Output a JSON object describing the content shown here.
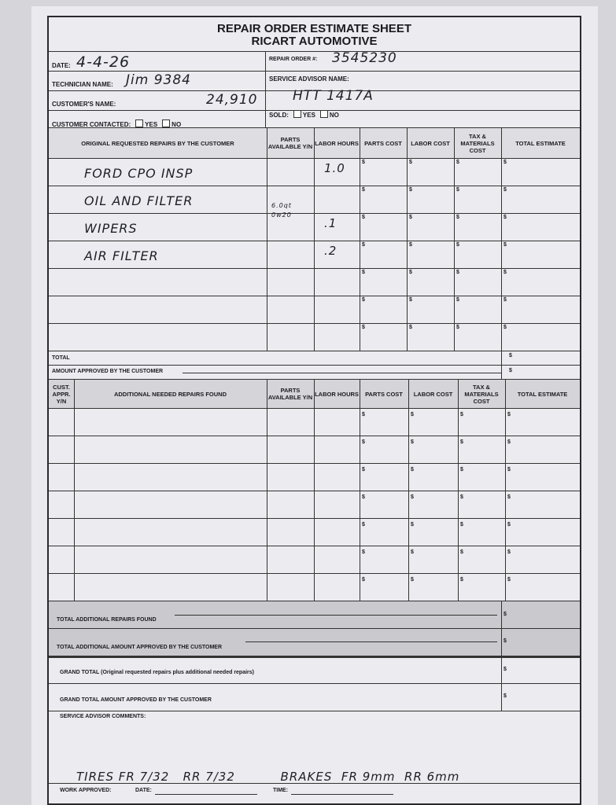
{
  "header": {
    "title": "REPAIR ORDER ESTIMATE SHEET",
    "company": "RICART AUTOMOTIVE"
  },
  "info": {
    "date_label": "DATE:",
    "date_value": "4-4-26",
    "ro_label": "REPAIR ORDER #:",
    "ro_value": "3545230",
    "tech_label": "TECHNICIAN NAME:",
    "tech_value": "Jim 9384",
    "advisor_label": "SERVICE ADVISOR NAME:",
    "advisor_value": "HTT 1417A",
    "customer_label": "CUSTOMER'S NAME:",
    "customer_value": "24,910",
    "contacted_label": "CUSTOMER CONTACTED:",
    "sold_label": "SOLD:",
    "yes": "YES",
    "no": "NO"
  },
  "original": {
    "headers": [
      "ORIGINAL REQUESTED REPAIRS BY THE CUSTOMER",
      "PARTS AVAILABLE Y/N",
      "LABOR HOURS",
      "PARTS COST",
      "LABOR COST",
      "TAX & MATERIALS COST",
      "TOTAL ESTIMATE"
    ],
    "rows": [
      {
        "desc": "FORD CPO INSP",
        "parts": "",
        "hours": "1.0"
      },
      {
        "desc": "OIL AND FILTER",
        "parts": "6.0qt 0w20",
        "hours": ""
      },
      {
        "desc": "WIPERS",
        "parts": "",
        "hours": ".1"
      },
      {
        "desc": "AIR FILTER",
        "parts": "",
        "hours": ".2"
      },
      {
        "desc": "",
        "parts": "",
        "hours": ""
      },
      {
        "desc": "",
        "parts": "",
        "hours": ""
      },
      {
        "desc": "",
        "parts": "",
        "hours": ""
      }
    ],
    "total_label": "TOTAL",
    "approved_label": "AMOUNT APPROVED BY THE CUSTOMER",
    "currency": "$"
  },
  "additional": {
    "headers": [
      "CUST. APPR. Y/N",
      "ADDITIONAL NEEDED REPAIRS FOUND",
      "PARTS AVAILABLE Y/N",
      "LABOR HOURS",
      "PARTS COST",
      "LABOR COST",
      "TAX & MATERIALS COST",
      "TOTAL ESTIMATE"
    ],
    "row_count": 7,
    "total_found_label": "TOTAL ADDITIONAL REPAIRS FOUND",
    "total_approved_label": "TOTAL ADDITIONAL AMOUNT APPROVED BY THE CUSTOMER"
  },
  "grand": {
    "grand_total_label": "GRAND TOTAL (Original requested repairs plus additional needed repairs)",
    "grand_approved_label": "GRAND TOTAL AMOUNT APPROVED BY THE CUSTOMER"
  },
  "comments": {
    "label": "SERVICE ADVISOR COMMENTS:",
    "text": "TIRES FR 7/32   RR 7/32          BRAKES  FR 9mm  RR 6mm"
  },
  "footer": {
    "work_approved": "WORK APPROVED:",
    "date": "DATE:",
    "time": "TIME:"
  }
}
